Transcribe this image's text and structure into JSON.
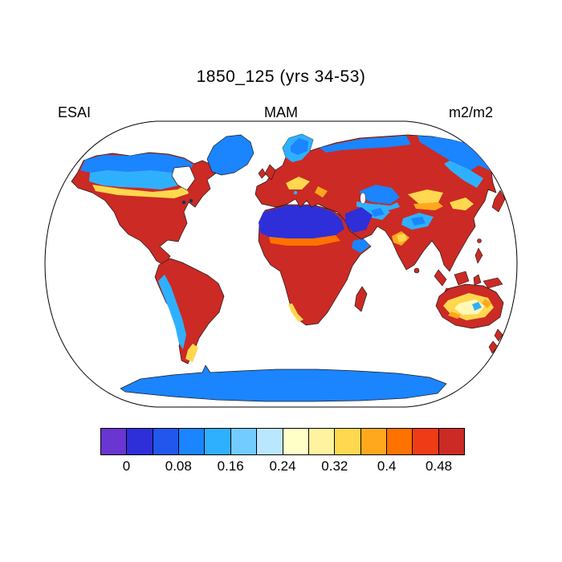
{
  "title": "1850_125 (yrs 34-53)",
  "labels": {
    "left": "ESAI",
    "center": "MAM",
    "right": "m2/m2"
  },
  "colorbar": {
    "cell_colors": [
      "#6a35d0",
      "#2e2fd9",
      "#2257ee",
      "#1b84ff",
      "#2fb0ff",
      "#72ccff",
      "#b9e7ff",
      "#ffffc8",
      "#fff3a0",
      "#ffd84f",
      "#ffa81e",
      "#ff7200",
      "#f03b17",
      "#cc2a24"
    ],
    "tick_labels": [
      "0",
      "0.08",
      "0.16",
      "0.24",
      "0.32",
      "0.4",
      "0.48"
    ],
    "tick_positions": [
      1,
      3,
      5,
      7,
      9,
      11,
      13
    ]
  },
  "palette": {
    "land_red": "#cc2a24",
    "deep_blue": "#2e2fd9",
    "blue": "#1b84ff",
    "cyan": "#2fb0ff",
    "light_cyan": "#8fd8ff",
    "yellow": "#ffd84f",
    "pale_yellow": "#fff9b8",
    "orange": "#ffa81e",
    "dark_orange": "#ff7200",
    "white": "#ffffff",
    "lake_dark": "#16324f",
    "outline": "#000000"
  },
  "chart_data": {
    "type": "heatmap",
    "title": "1850_125 (yrs 34-53)",
    "variable": "ESAI",
    "season": "MAM",
    "units": "m2/m2",
    "projection": "Robinson world map",
    "colorbar": {
      "cell_width": 0.04,
      "min": -0.04,
      "max": 0.52,
      "tick_values": [
        0,
        0.08,
        0.16,
        0.24,
        0.32,
        0.4,
        0.48
      ],
      "colors": [
        "#6a35d0",
        "#2e2fd9",
        "#2257ee",
        "#1b84ff",
        "#2fb0ff",
        "#72ccff",
        "#b9e7ff",
        "#ffffc8",
        "#fff3a0",
        "#ffd84f",
        "#ffa81e",
        "#ff7200",
        "#f03b17",
        "#cc2a24"
      ],
      "orientation": "horizontal",
      "position": "bottom"
    },
    "regions": [
      {
        "region": "Sahara Desert",
        "approx_value": "0.00-0.04",
        "shade": "deep blue"
      },
      {
        "region": "Arabian Peninsula / Middle East deserts",
        "approx_value": "0.00-0.12",
        "shade": "blue"
      },
      {
        "region": "Antarctica",
        "approx_value": "0.00-0.08",
        "shade": "blue"
      },
      {
        "region": "Greenland margin",
        "approx_value": "0.04-0.12",
        "shade": "blue"
      },
      {
        "region": "Northern Canada and Alaska",
        "approx_value": "0.04-0.20",
        "shade": "blue to cyan"
      },
      {
        "region": "Northeast Siberia / Chukotka",
        "approx_value": "0.04-0.16",
        "shade": "blue"
      },
      {
        "region": "Central Asia deserts",
        "approx_value": "0.08-0.20",
        "shade": "blue-cyan"
      },
      {
        "region": "Tibetan Plateau",
        "approx_value": "0.12-0.24",
        "shade": "cyan"
      },
      {
        "region": "Scandinavia",
        "approx_value": "0.08-0.24",
        "shade": "blue-cyan"
      },
      {
        "region": "Mongolia/Gobi, NW India, Sahel, central Australia, mid-Canada transition",
        "approx_value": "0.24-0.44",
        "shade": "yellow to orange"
      },
      {
        "region": "Tropical and temperate vegetated land (Amazon, Congo, SE Asia, eastern N. America, S. Europe, E. China, coastal Australia)",
        "approx_value": "> 0.48",
        "shade": "dark red"
      }
    ]
  }
}
